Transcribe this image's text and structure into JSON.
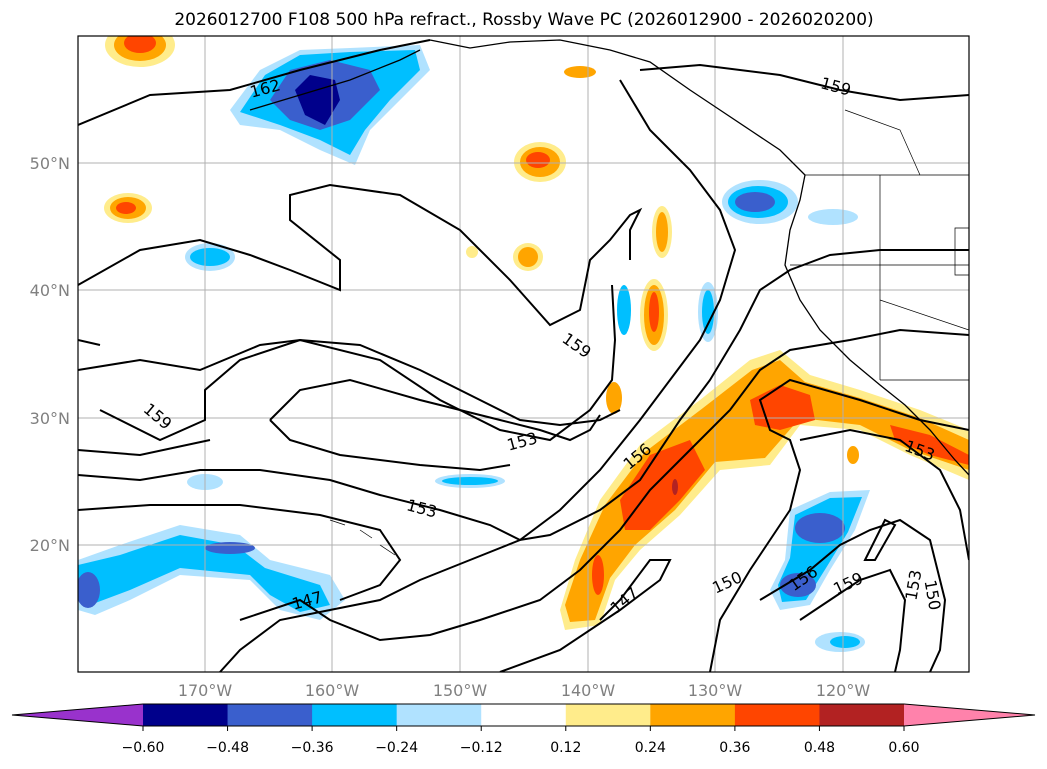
{
  "title": "2026012700 F108 500 hPa refract., Rossby Wave PC (2026012900 - 2026020200)",
  "map": {
    "lon_labels": [
      "170°W",
      "160°W",
      "150°W",
      "140°W",
      "130°W",
      "120°W"
    ],
    "lat_labels": [
      "50°N",
      "40°N",
      "30°N",
      "20°N"
    ],
    "contour_labels": [
      "162",
      "159",
      "159",
      "159",
      "153",
      "156",
      "153",
      "147",
      "147",
      "150",
      "156",
      "159",
      "153",
      "150",
      "153"
    ]
  },
  "colorbar": {
    "colors": [
      "#9932cc",
      "#00008b",
      "#3a5fcd",
      "#00bfff",
      "#b0e2ff",
      "#ffffff",
      "#ffec8b",
      "#ffa500",
      "#ff4500",
      "#b22222",
      "#ff82ab"
    ],
    "ticks": [
      "−0.60",
      "−0.48",
      "−0.36",
      "−0.24",
      "−0.12",
      "0.12",
      "0.24",
      "0.36",
      "0.48",
      "0.60"
    ]
  }
}
